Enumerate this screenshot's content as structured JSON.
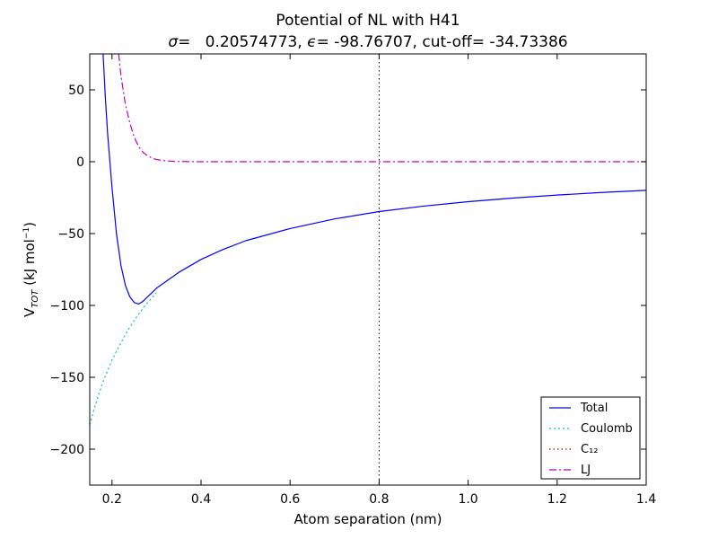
{
  "chart_data": {
    "type": "line",
    "title": "Potential of NL with H41",
    "subtitle_parts": {
      "sigma_symbol": "σ",
      "sigma_text": "=   0.20574773, ",
      "epsilon_symbol": "ϵ",
      "epsilon_text": "= -98.76707, cut-off= -34.73386"
    },
    "sigma": 0.20574773,
    "epsilon": -98.76707,
    "cutoff": -34.73386,
    "xlabel": "Atom separation (nm)",
    "ylabel_parts": {
      "prefix": "V",
      "sub": "TOT",
      "units": " (kJ mol",
      "sup": "−1",
      "close": ")"
    },
    "xlim": [
      0.15,
      1.4
    ],
    "ylim": [
      -225,
      75
    ],
    "x_ticks": [
      0.2,
      0.4,
      0.6,
      0.8,
      1.0,
      1.2,
      1.4
    ],
    "x_tick_labels": [
      "0.2",
      "0.4",
      "0.6",
      "0.8",
      "1.0",
      "1.2",
      "1.4"
    ],
    "y_ticks": [
      50,
      0,
      -50,
      -100,
      -150,
      -200
    ],
    "y_tick_labels": [
      "50",
      "0",
      "−50",
      "−100",
      "−150",
      "−200"
    ],
    "vline_x": 0.8,
    "legend_position": "lower-right",
    "series": [
      {
        "name": "Total",
        "color": "#0000ff",
        "dash": "",
        "x": [
          0.18,
          0.185,
          0.19,
          0.2,
          0.21,
          0.22,
          0.23,
          0.24,
          0.25,
          0.26,
          0.27,
          0.28,
          0.3,
          0.35,
          0.4,
          0.45,
          0.5,
          0.6,
          0.7,
          0.8,
          0.9,
          1.0,
          1.1,
          1.2,
          1.3,
          1.4
        ],
        "y": [
          75,
          45,
          20,
          -18,
          -50,
          -72,
          -86,
          -94,
          -98,
          -99,
          -97,
          -94,
          -88,
          -77,
          -68,
          -61,
          -55,
          -46.5,
          -39.8,
          -34.7,
          -30.9,
          -27.8,
          -25.3,
          -23.2,
          -21.4,
          -19.9
        ]
      },
      {
        "name": "Coulomb",
        "color": "#00bfbf",
        "dash": "2,3",
        "x": [
          0.15,
          0.16,
          0.17,
          0.18,
          0.2,
          0.22,
          0.24,
          0.26,
          0.28,
          0.3
        ],
        "y": [
          -183,
          -172,
          -162,
          -153,
          -138,
          -126,
          -115,
          -106,
          -98,
          -91
        ]
      },
      {
        "name": "C₁₂",
        "color": "#bf0000",
        "dash": "1.5,3",
        "x": [],
        "y": []
      },
      {
        "name": "LJ",
        "color": "#bf00bf",
        "dash": "8,3,2,3",
        "x": [
          0.215,
          0.22,
          0.23,
          0.24,
          0.25,
          0.26,
          0.27,
          0.28,
          0.29,
          0.3,
          0.32,
          0.34,
          0.37,
          0.4,
          0.5,
          0.6,
          0.8,
          1.0,
          1.2,
          1.4
        ],
        "y": [
          75,
          60,
          40,
          27,
          17,
          10.5,
          6.5,
          4,
          2.5,
          1.5,
          0.6,
          0.25,
          0.08,
          0.02,
          0,
          0,
          0,
          0,
          0,
          0
        ]
      }
    ]
  }
}
